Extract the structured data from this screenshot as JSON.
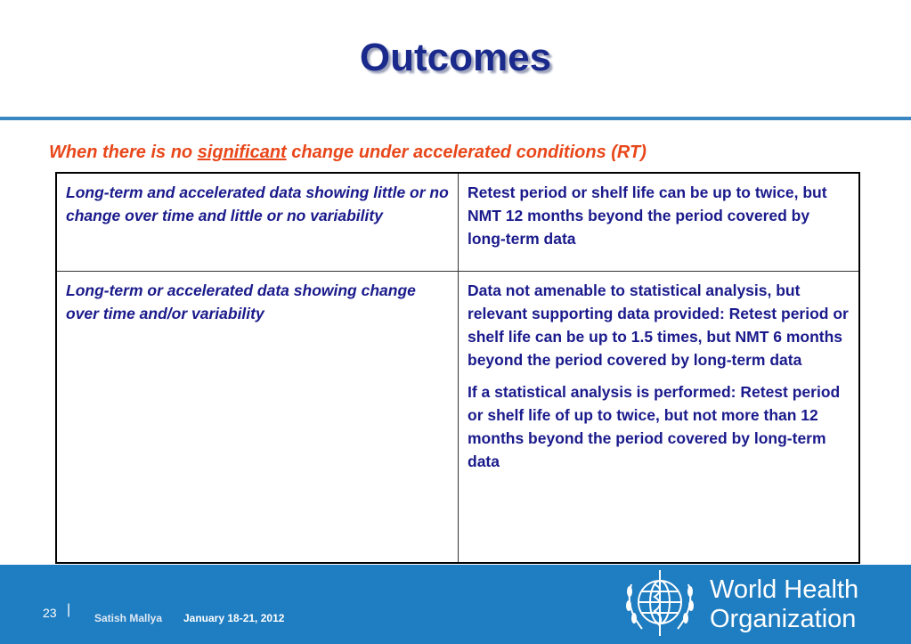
{
  "header": {
    "title": "Outcomes"
  },
  "subtitle": {
    "before": "When there is no ",
    "emphasis": "significant",
    "after": " change under accelerated conditions (RT)"
  },
  "table": {
    "rows": [
      {
        "criterion": "Long-term and accelerated data showing little or no change over time and little or no variability",
        "outcome": [
          "Retest period or shelf life can be up to twice, but NMT 12 months beyond the period covered by long-term data"
        ]
      },
      {
        "criterion": "Long-term or accelerated data showing change over time and/or variability",
        "outcome": [
          "Data not amenable to statistical analysis, but relevant supporting data provided: Retest period or shelf life can be up to 1.5 times, but NMT 6 months beyond the period covered by long-term data",
          "If a statistical analysis is performed: Retest period or shelf life of up to twice, but not more than 12 months beyond the period covered by long-term data"
        ]
      }
    ]
  },
  "footer": {
    "page": "23",
    "separator": "|",
    "author": "Satish Mallya",
    "date": "January 18-21, 2012",
    "organization": [
      "World Health",
      "Organization"
    ]
  }
}
